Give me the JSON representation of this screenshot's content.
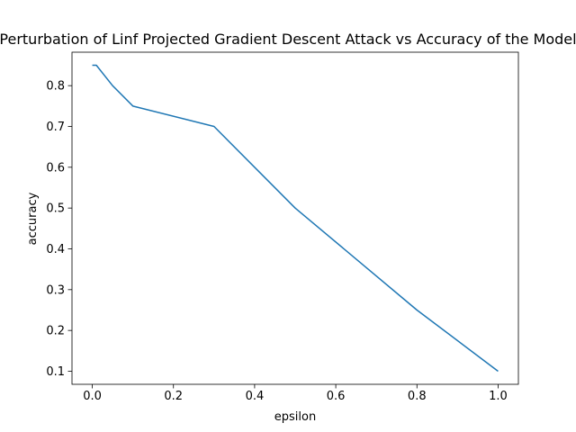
{
  "chart_data": {
    "type": "line",
    "title": "Perturbation of Linf Projected Gradient Descent Attack vs Accuracy of the Model",
    "xlabel": "epsilon",
    "ylabel": "accuracy",
    "xlim": [
      -0.05,
      1.05
    ],
    "ylim": [
      0.068,
      0.882
    ],
    "x_ticks": [
      0.0,
      0.2,
      0.4,
      0.6,
      0.8,
      1.0
    ],
    "x_tick_labels": [
      "0.0",
      "0.2",
      "0.4",
      "0.6",
      "0.8",
      "1.0"
    ],
    "y_ticks": [
      0.1,
      0.2,
      0.3,
      0.4,
      0.5,
      0.6,
      0.7,
      0.8
    ],
    "y_tick_labels": [
      "0.1",
      "0.2",
      "0.3",
      "0.4",
      "0.5",
      "0.6",
      "0.7",
      "0.8"
    ],
    "grid": false,
    "legend": "none",
    "series": [
      {
        "color": "#1f77b4",
        "x": [
          0.0,
          0.01,
          0.05,
          0.1,
          0.3,
          0.5,
          0.8,
          1.0
        ],
        "y": [
          0.85,
          0.85,
          0.8,
          0.75,
          0.7,
          0.5,
          0.25,
          0.1
        ]
      }
    ]
  }
}
